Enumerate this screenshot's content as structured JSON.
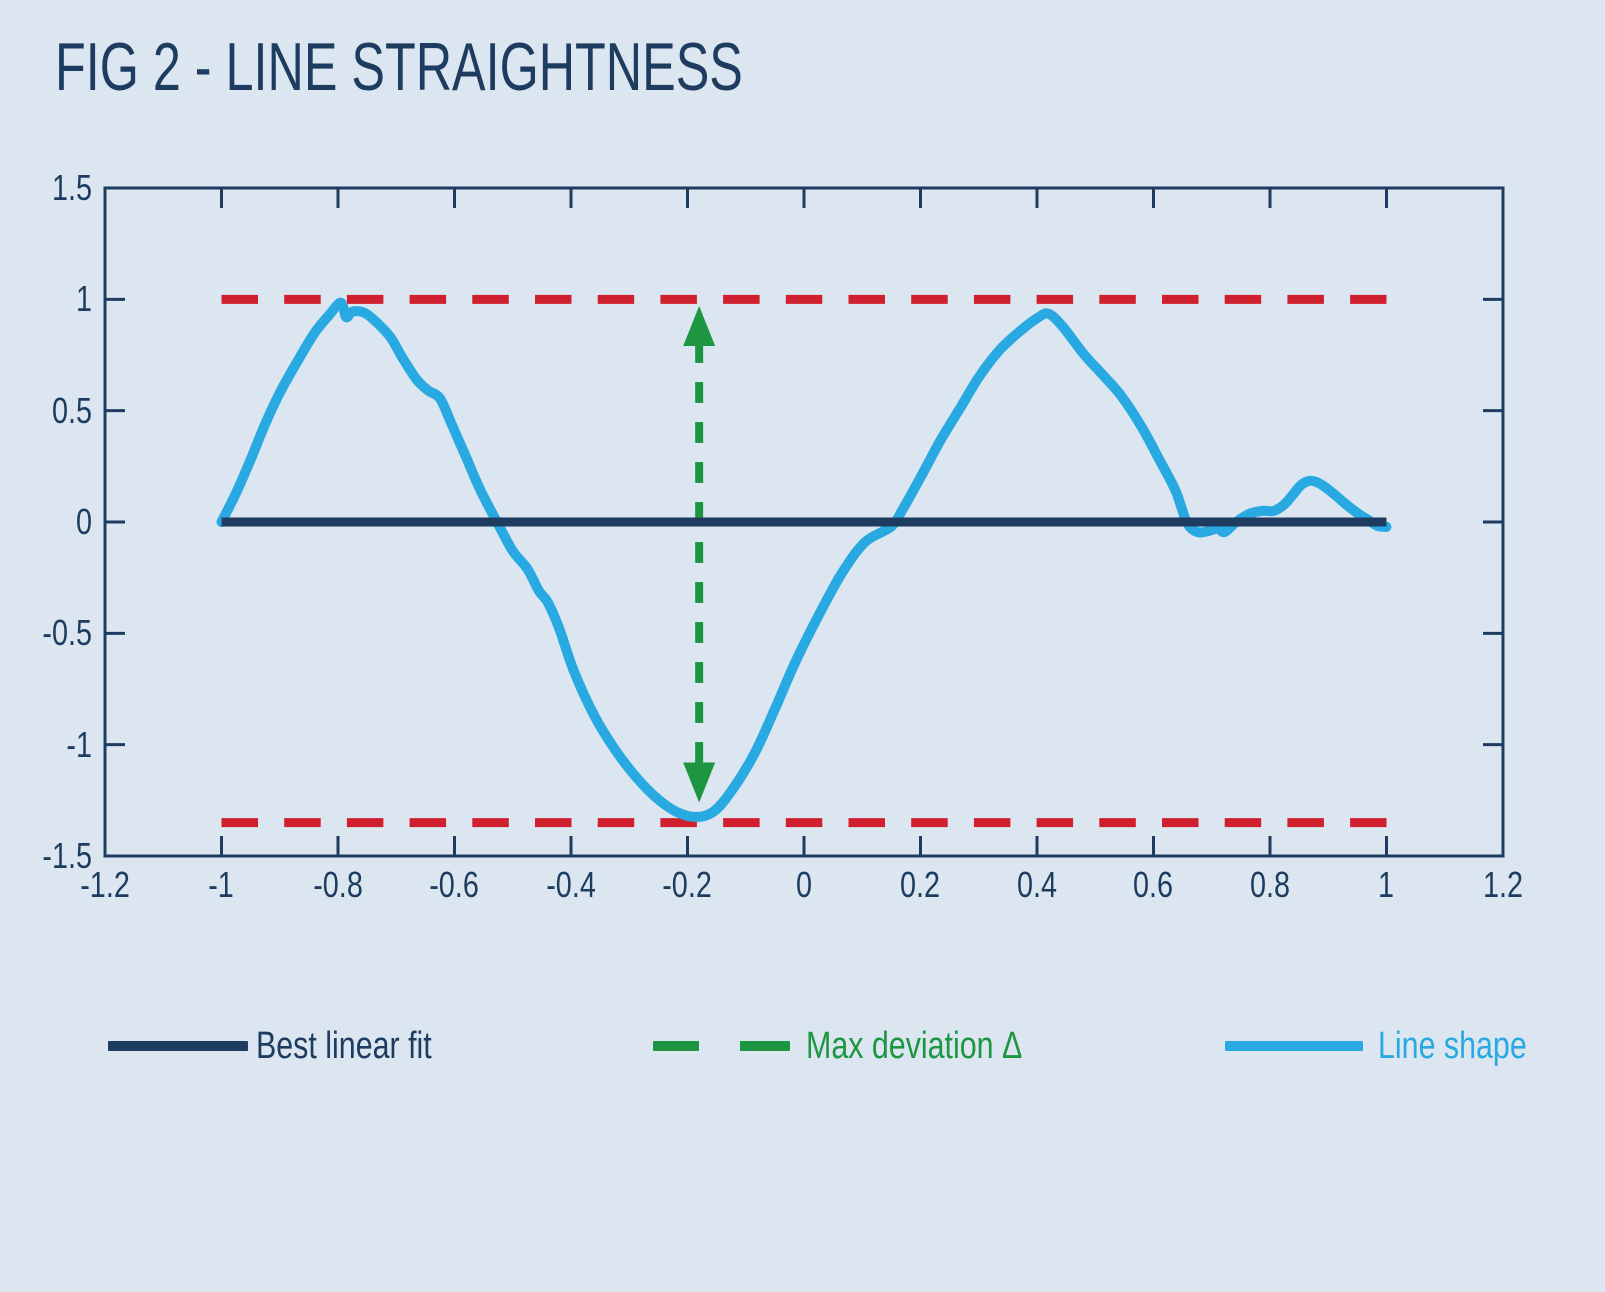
{
  "title": "FIG 2 - LINE STRAIGHTNESS",
  "colors": {
    "background": "#dce6f0",
    "navy": "#1d3c5f",
    "cyan": "#29a9e1",
    "red": "#d01f2e",
    "green": "#1e9641",
    "axis": "#1d3c5f"
  },
  "chart_data": {
    "type": "line",
    "title": "FIG 2 - LINE STRAIGHTNESS",
    "xlim": [
      -1.2,
      1.2
    ],
    "ylim": [
      -1.5,
      1.5
    ],
    "grid": false,
    "box": true,
    "x_tick_values": [
      -1.2,
      -1,
      -0.8,
      -0.6,
      -0.4,
      -0.2,
      0,
      0.2,
      0.4,
      0.6,
      0.8,
      1,
      1.2
    ],
    "x_tick_labels": [
      "-1.2",
      "-1",
      "-0.8",
      "-0.6",
      "-0.4",
      "-0.2",
      "0",
      "0.2",
      "0.4",
      "0.6",
      "0.8",
      "1",
      "1.2"
    ],
    "x_tick_marks": [
      -1,
      -0.8,
      -0.6,
      -0.4,
      -0.2,
      0,
      0.2,
      0.4,
      0.6,
      0.8,
      1
    ],
    "y_tick_values": [
      1.5,
      1,
      0.5,
      0,
      -0.5,
      -1,
      -1.5
    ],
    "y_tick_labels": [
      "1.5",
      "1",
      "0.5",
      "0",
      "-0.5",
      "-1",
      "-1.5"
    ],
    "y_tick_marks": [
      1,
      0.5,
      0,
      -0.5,
      -1
    ],
    "series": [
      {
        "name": "Tolerance limits",
        "type": "hline-dashed",
        "color": "#d01f2e",
        "width": 9,
        "dash": [
          36.5,
          26.2
        ],
        "y_values": [
          1.0,
          -1.35
        ],
        "x_range": [
          -1,
          1
        ],
        "z": 1
      },
      {
        "name": "Max deviation Δ",
        "type": "vline-double-arrow-dashed",
        "color": "#1e9641",
        "width": 8,
        "dash": [
          21,
          19
        ],
        "x": -0.18,
        "y_range": [
          -1.26,
          0.97
        ],
        "arrow_w": 32,
        "arrow_h": 40,
        "z": 2
      },
      {
        "name": "Line shape",
        "type": "line",
        "color": "#29a9e1",
        "width": 10,
        "smooth": true,
        "points": [
          [
            -1.0,
            0.0
          ],
          [
            -0.975,
            0.13
          ],
          [
            -0.95,
            0.28
          ],
          [
            -0.925,
            0.44
          ],
          [
            -0.9,
            0.58
          ],
          [
            -0.87,
            0.72
          ],
          [
            -0.84,
            0.85
          ],
          [
            -0.815,
            0.93
          ],
          [
            -0.795,
            0.985
          ],
          [
            -0.786,
            0.92
          ],
          [
            -0.775,
            0.945
          ],
          [
            -0.755,
            0.94
          ],
          [
            -0.735,
            0.9
          ],
          [
            -0.71,
            0.83
          ],
          [
            -0.69,
            0.74
          ],
          [
            -0.665,
            0.64
          ],
          [
            -0.645,
            0.59
          ],
          [
            -0.625,
            0.555
          ],
          [
            -0.605,
            0.44
          ],
          [
            -0.58,
            0.29
          ],
          [
            -0.555,
            0.14
          ],
          [
            -0.525,
            -0.01
          ],
          [
            -0.5,
            -0.13
          ],
          [
            -0.475,
            -0.21
          ],
          [
            -0.455,
            -0.31
          ],
          [
            -0.44,
            -0.36
          ],
          [
            -0.42,
            -0.48
          ],
          [
            -0.395,
            -0.67
          ],
          [
            -0.36,
            -0.87
          ],
          [
            -0.325,
            -1.02
          ],
          [
            -0.29,
            -1.14
          ],
          [
            -0.255,
            -1.235
          ],
          [
            -0.22,
            -1.3
          ],
          [
            -0.185,
            -1.325
          ],
          [
            -0.155,
            -1.3
          ],
          [
            -0.125,
            -1.21
          ],
          [
            -0.085,
            -1.04
          ],
          [
            -0.05,
            -0.84
          ],
          [
            -0.015,
            -0.63
          ],
          [
            0.025,
            -0.42
          ],
          [
            0.065,
            -0.23
          ],
          [
            0.105,
            -0.09
          ],
          [
            0.15,
            -0.02
          ],
          [
            0.17,
            0.06
          ],
          [
            0.2,
            0.2
          ],
          [
            0.235,
            0.37
          ],
          [
            0.27,
            0.52
          ],
          [
            0.3,
            0.65
          ],
          [
            0.335,
            0.77
          ],
          [
            0.37,
            0.855
          ],
          [
            0.4,
            0.915
          ],
          [
            0.42,
            0.935
          ],
          [
            0.445,
            0.875
          ],
          [
            0.48,
            0.755
          ],
          [
            0.515,
            0.655
          ],
          [
            0.545,
            0.565
          ],
          [
            0.58,
            0.425
          ],
          [
            0.61,
            0.28
          ],
          [
            0.638,
            0.14
          ],
          [
            0.657,
            0.0
          ],
          [
            0.675,
            -0.045
          ],
          [
            0.695,
            -0.04
          ],
          [
            0.71,
            -0.03
          ],
          [
            0.722,
            -0.045
          ],
          [
            0.742,
            0.0
          ],
          [
            0.764,
            0.036
          ],
          [
            0.787,
            0.05
          ],
          [
            0.807,
            0.05
          ],
          [
            0.825,
            0.08
          ],
          [
            0.84,
            0.125
          ],
          [
            0.855,
            0.17
          ],
          [
            0.872,
            0.185
          ],
          [
            0.89,
            0.165
          ],
          [
            0.91,
            0.125
          ],
          [
            0.93,
            0.08
          ],
          [
            0.95,
            0.04
          ],
          [
            0.968,
            0.01
          ],
          [
            0.985,
            -0.018
          ],
          [
            1.0,
            -0.022
          ]
        ],
        "z": 3
      },
      {
        "name": "Best linear fit",
        "type": "line",
        "color": "#1d3c5f",
        "width": 9,
        "smooth": false,
        "points": [
          [
            -1,
            0
          ],
          [
            1,
            0
          ]
        ],
        "z": 4
      }
    ],
    "legend": {
      "position": "bottom",
      "items": [
        {
          "label": "Best linear fit",
          "color": "#1d3c5f",
          "style": "solid"
        },
        {
          "label": "Max deviation Δ",
          "color": "#1e9641",
          "style": "dashed"
        },
        {
          "label": "Line shape",
          "color": "#29a9e1",
          "style": "solid"
        }
      ]
    }
  }
}
